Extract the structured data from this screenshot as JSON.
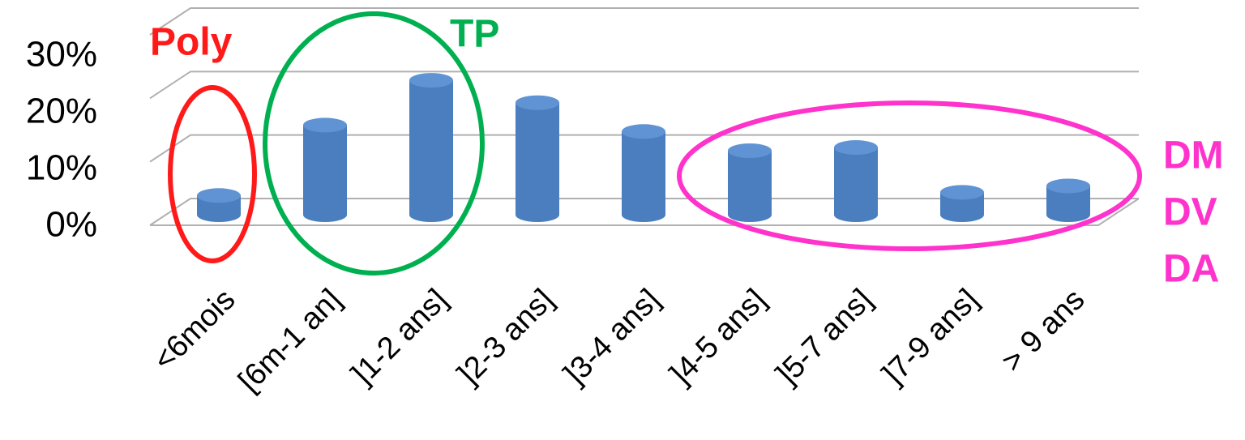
{
  "chart_data": {
    "type": "bar",
    "categories": [
      "<6mois",
      "[6m-1 an]",
      "]1-2 ans]",
      "]2-3 ans]",
      "]3-4 ans]",
      "]4-5 ans]",
      "]5-7 ans]",
      "]7-9 ans]",
      "> 9 ans"
    ],
    "values": [
      3,
      14,
      21,
      17.5,
      13,
      10,
      10.5,
      3.5,
      4.5
    ],
    "color": "#4a7ebf",
    "ylim": [
      0,
      30
    ],
    "yticks": [
      {
        "value": 0,
        "label": "0%"
      },
      {
        "value": 10,
        "label": "10%"
      },
      {
        "value": 20,
        "label": "20%"
      },
      {
        "value": 30,
        "label": "30%"
      }
    ],
    "grid": true,
    "annotations": [
      {
        "text": "Poly",
        "color": "#ff1a1a"
      },
      {
        "text": "TP",
        "color": "#00b050"
      },
      {
        "text": "DM",
        "color": "#ff33cc"
      },
      {
        "text": "DV",
        "color": "#ff33cc"
      },
      {
        "text": "DA",
        "color": "#ff33cc"
      }
    ]
  }
}
